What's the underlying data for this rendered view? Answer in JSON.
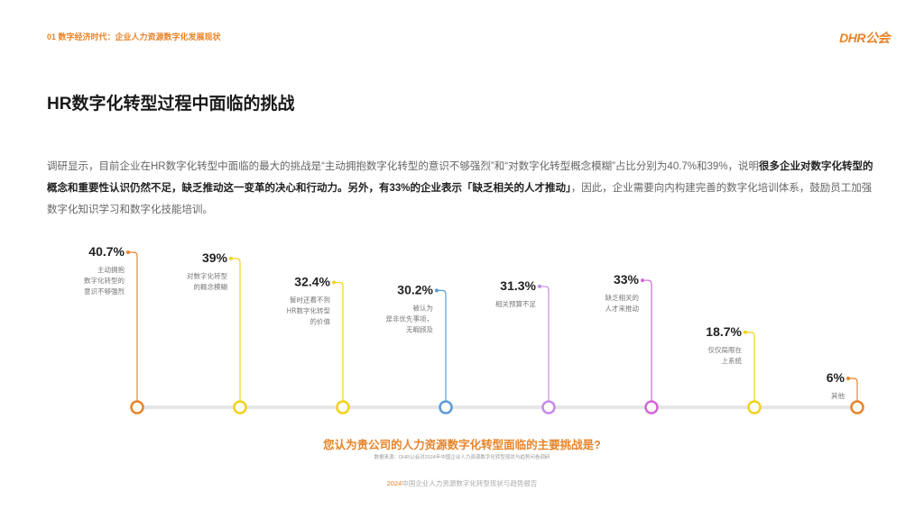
{
  "header": {
    "section_label": "01 数字经济时代：企业人力资源数字化发展现状",
    "brand": "DHR公会"
  },
  "page_title": "HR数字化转型过程中面临的挑战",
  "intro": {
    "part1": "调研显示，目前企业在HR数字化转型中面临的最大的挑战是“主动拥抱数字化转型的意识不够强烈”和“对数字化转型概念模糊”占比分别为40.7%和39%，说明",
    "bold1": "很多企业对数字化转型的概念和重要性认识仍然不足，缺乏推动这一变革的决心和行动力。另外，有33%的企业表示「缺乏相关的人才推动」",
    "part2": "，因此，企业需要向内构建完善的数字化培训体系，鼓励员工加强数字化知识学习和数字化技能培训。"
  },
  "chart_data": {
    "type": "bar",
    "unit": "%",
    "title": "您认为贵公司的人力资源数字化转型面临的主要挑战是?",
    "categories": [
      [
        "主动拥抱",
        "数字化转型的",
        "意识不够强烈"
      ],
      [
        "对数字化转型",
        "的概念模糊"
      ],
      [
        "暂时还看不到",
        "HR数字化转型",
        "的价值"
      ],
      [
        "被认为",
        "是非优先事项，",
        "无暇顾及"
      ],
      [
        "相关预算不足"
      ],
      [
        "缺乏相关的",
        "人才来推动"
      ],
      [
        "仅仅局限在",
        "上系统"
      ],
      [
        "其他"
      ]
    ],
    "values": [
      40.7,
      39,
      32.4,
      30.2,
      31.3,
      33,
      18.7,
      6
    ],
    "value_labels": [
      "40.7%",
      "39%",
      "32.4%",
      "30.2%",
      "31.3%",
      "33%",
      "18.7%",
      "6%"
    ],
    "colors": [
      "#e8842a",
      "#f2d21b",
      "#f2d21b",
      "#5b9bd5",
      "#c58be8",
      "#d466d6",
      "#f2d21b",
      "#e8842a"
    ]
  },
  "source": "数据来源：DHR公会对2024年中国企业人力资源数字化转型现状与趋势问卷调研",
  "footer": {
    "year": "2024",
    "text": "中国企业人力资源数字化转型现状与趋势报告"
  }
}
